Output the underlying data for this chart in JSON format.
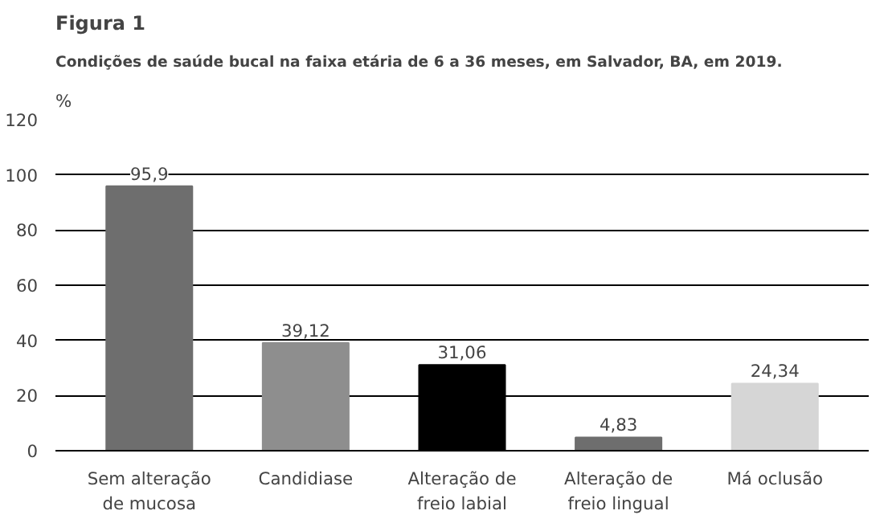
{
  "chart_data": {
    "type": "bar",
    "title": "Figura 1",
    "subtitle": "Condições de saúde bucal na faixa etária de 6 a 36 meses, em Salvador, BA, em 2019.",
    "ylabel": "%",
    "categories": [
      "Sem alteração\nde mucosa",
      "Candidiase",
      "Alteração de\nfreio labial",
      "Alteração de\nfreio lingual",
      "Má oclusão"
    ],
    "values": [
      95.9,
      39.12,
      31.06,
      4.83,
      24.34
    ],
    "value_labels": [
      "95,9",
      "39,12",
      "31,06",
      "4,83",
      "24,34"
    ],
    "colors": [
      "#6e6e6e",
      "#8e8e8e",
      "#000000",
      "#6e6e6e",
      "#d6d6d6"
    ],
    "ylim": [
      0,
      120
    ],
    "yticks": [
      0,
      20,
      40,
      60,
      80,
      100,
      120
    ],
    "grid": "y"
  }
}
